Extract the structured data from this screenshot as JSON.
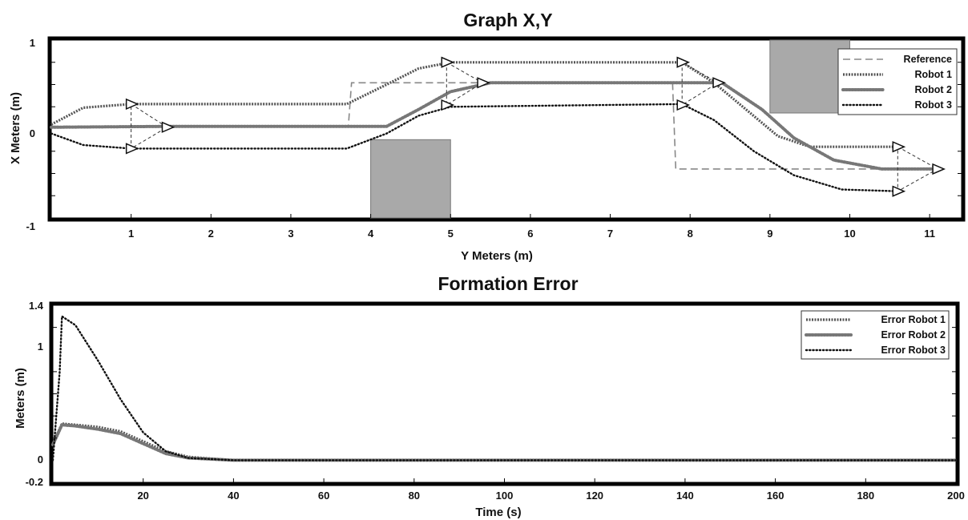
{
  "chart_data": [
    {
      "type": "line",
      "title": "Graph X,Y",
      "xlabel": "Y Meters (m)",
      "ylabel": "X Meters (m)",
      "xlim": [
        0,
        11.4
      ],
      "ylim": [
        -1,
        1
      ],
      "xticks": [
        "1",
        "2",
        "3",
        "4",
        "5",
        "6",
        "7",
        "8",
        "9",
        "10",
        "11"
      ],
      "yticks": [
        "1",
        "0",
        "-1"
      ],
      "legend_position": "top-right",
      "grid": false,
      "series": [
        {
          "name": "Reference",
          "style": "dashed",
          "color": "#888888",
          "x": [
            0,
            3.72,
            3.76,
            7.78,
            7.82,
            11.1
          ],
          "y": [
            0.03,
            0.03,
            0.52,
            0.52,
            -0.45,
            -0.45
          ]
        },
        {
          "name": "Robot 1",
          "style": "dotted-dense",
          "color": "#555555",
          "x": [
            0,
            0.4,
            1.0,
            3.7,
            4.2,
            4.6,
            5.0,
            7.9,
            8.3,
            8.7,
            9.1,
            9.5,
            10.6
          ],
          "y": [
            0.05,
            0.24,
            0.28,
            0.28,
            0.5,
            0.68,
            0.75,
            0.75,
            0.52,
            0.22,
            -0.08,
            -0.2,
            -0.2
          ]
        },
        {
          "name": "Robot 2",
          "style": "circles",
          "color": "#777777",
          "x": [
            0,
            1.5,
            4.2,
            4.6,
            5.0,
            5.5,
            8.4,
            8.9,
            9.3,
            9.8,
            10.4,
            11.1
          ],
          "y": [
            0.02,
            0.03,
            0.03,
            0.22,
            0.42,
            0.52,
            0.52,
            0.22,
            -0.1,
            -0.35,
            -0.45,
            -0.45
          ]
        },
        {
          "name": "Robot 3",
          "style": "dots",
          "color": "#111111",
          "x": [
            0,
            0.4,
            1.0,
            3.7,
            4.2,
            4.6,
            5.0,
            7.9,
            8.3,
            8.8,
            9.3,
            9.9,
            10.6
          ],
          "y": [
            -0.05,
            -0.18,
            -0.22,
            -0.22,
            -0.05,
            0.15,
            0.25,
            0.28,
            0.1,
            -0.25,
            -0.52,
            -0.68,
            -0.7
          ]
        }
      ],
      "formation_triangles": [
        {
          "x": [
            1.0,
            1.45,
            1.0
          ],
          "y": [
            0.28,
            0.02,
            -0.22
          ]
        },
        {
          "x": [
            4.95,
            5.4,
            4.95
          ],
          "y": [
            0.75,
            0.52,
            0.27
          ]
        },
        {
          "x": [
            7.9,
            8.35,
            7.9
          ],
          "y": [
            0.75,
            0.52,
            0.27
          ]
        },
        {
          "x": [
            10.6,
            11.1,
            10.6
          ],
          "y": [
            -0.2,
            -0.45,
            -0.7
          ]
        }
      ],
      "obstacles": [
        {
          "x": [
            4.0,
            5.0
          ],
          "y": [
            -1,
            -0.12
          ]
        },
        {
          "x": [
            9.0,
            10.0
          ],
          "y": [
            0.18,
            1
          ]
        }
      ]
    },
    {
      "type": "line",
      "title": "Formation Error",
      "xlabel": "Time (s)",
      "ylabel": "Meters (m)",
      "xlim": [
        0,
        200
      ],
      "ylim": [
        -0.2,
        1.4
      ],
      "xticks": [
        "20",
        "40",
        "60",
        "80",
        "100",
        "120",
        "140",
        "160",
        "180",
        "200"
      ],
      "yticks": [
        "1.4",
        "1",
        "0",
        "-0.2"
      ],
      "legend_position": "top-right",
      "grid": false,
      "series": [
        {
          "name": "Error Robot 1",
          "style": "dotted-dense",
          "color": "#555555",
          "x": [
            0,
            2,
            5,
            10,
            15,
            20,
            25,
            30,
            40,
            60,
            200
          ],
          "y": [
            0.15,
            0.33,
            0.32,
            0.3,
            0.26,
            0.17,
            0.08,
            0.03,
            0.0,
            0.0,
            0.0
          ]
        },
        {
          "name": "Error Robot 2",
          "style": "circles",
          "color": "#777777",
          "x": [
            0,
            2,
            5,
            10,
            15,
            20,
            25,
            30,
            40,
            60,
            200
          ],
          "y": [
            0.14,
            0.32,
            0.31,
            0.28,
            0.24,
            0.15,
            0.06,
            0.02,
            0.0,
            0.0,
            0.0
          ]
        },
        {
          "name": "Error Robot 3",
          "style": "dots",
          "color": "#111111",
          "x": [
            0,
            1.5,
            2,
            5,
            10,
            15,
            20,
            25,
            30,
            40,
            60,
            200
          ],
          "y": [
            0.0,
            0.8,
            1.3,
            1.22,
            0.9,
            0.55,
            0.25,
            0.08,
            0.02,
            0.0,
            0.0,
            0.0
          ]
        }
      ]
    }
  ]
}
